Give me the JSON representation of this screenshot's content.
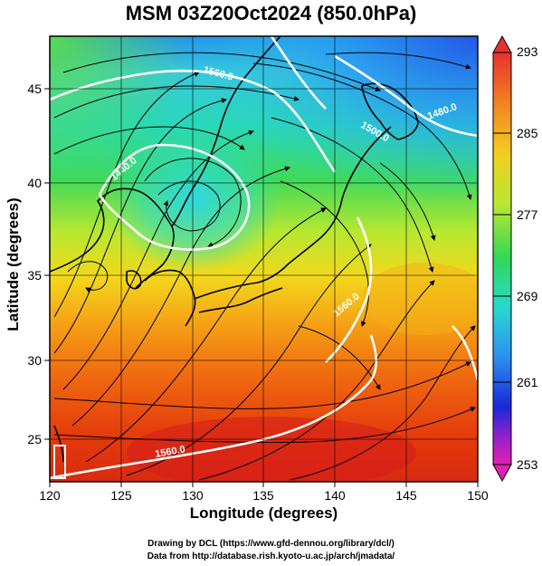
{
  "title": "MSM 03Z20Oct2024 (850.0hPa)",
  "x_axis": {
    "label": "Longitude (degrees)",
    "ticks": [
      "120",
      "125",
      "130",
      "135",
      "140",
      "145",
      "150"
    ]
  },
  "y_axis": {
    "label": "Latitude  (degrees)",
    "ticks": [
      "25",
      "30",
      "35",
      "40",
      "45"
    ]
  },
  "colorbar": {
    "ticks": [
      "293",
      "285",
      "277",
      "269",
      "261",
      "253"
    ],
    "min": 253,
    "max": 293
  },
  "contour_labels": [
    "1560.0",
    "1500.0",
    "1440.0",
    "1480.0",
    "1560.0",
    "1560.0"
  ],
  "credit_line1": "Drawing by DCL (https://www.gfd-dennou.org/library/dcl/)",
  "credit_line2": "Data from http://database.rish.kyoto-u.ac.jp/arch/jmadata/"
}
